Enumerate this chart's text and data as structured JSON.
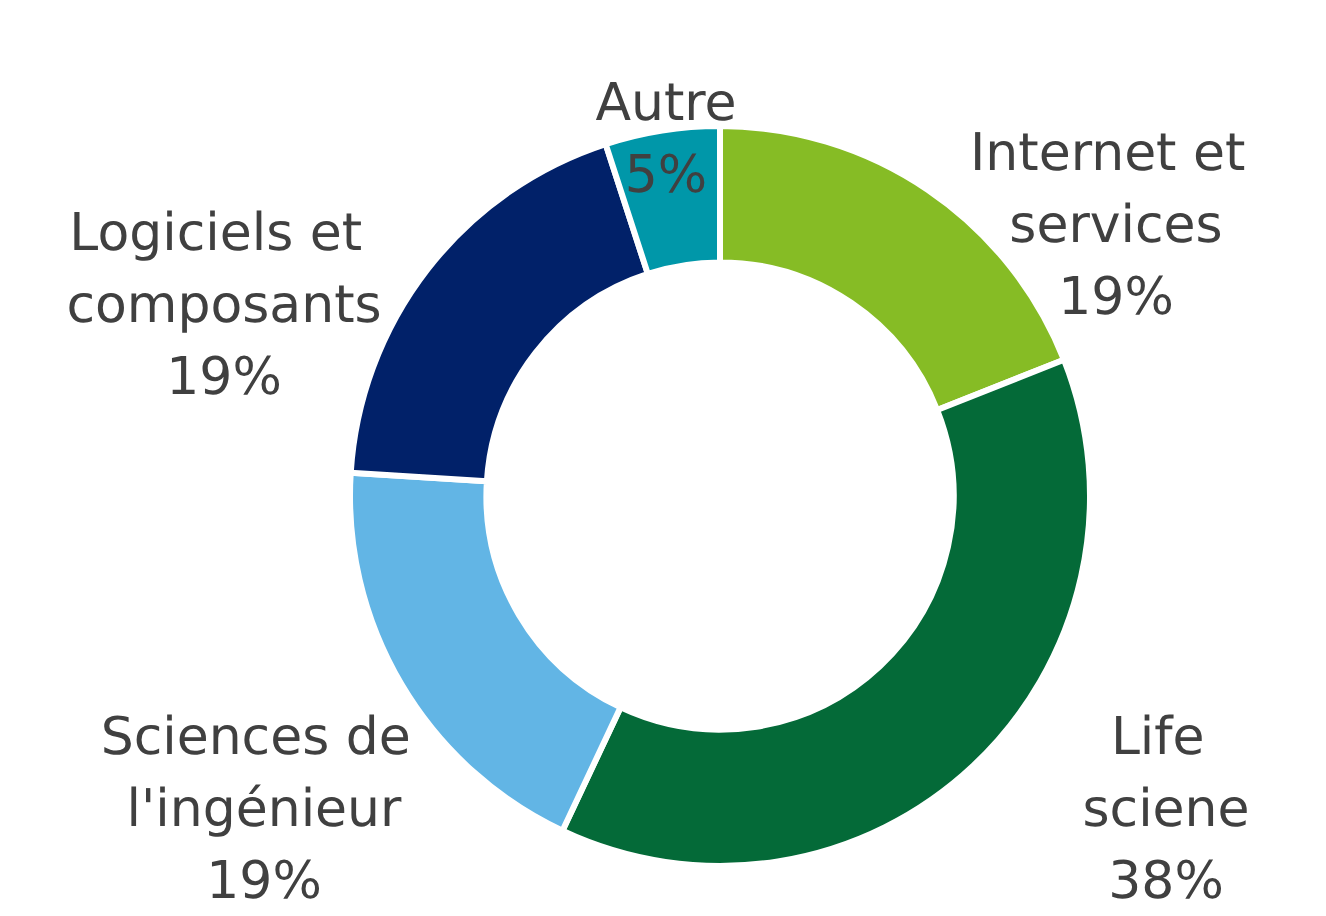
{
  "chart_data": {
    "type": "donut",
    "categories": [
      "Internet et services",
      "Life sciene",
      "Sciences de l'ingénieur",
      "Logiciels et composants",
      "Autre"
    ],
    "values": [
      19,
      38,
      19,
      19,
      5
    ],
    "value_labels": [
      "19%",
      "38%",
      "19%",
      "19%",
      "5%"
    ],
    "colors": [
      "#86bc25",
      "#046a38",
      "#62b5e5",
      "#012169",
      "#0097a9"
    ],
    "legend": false
  }
}
